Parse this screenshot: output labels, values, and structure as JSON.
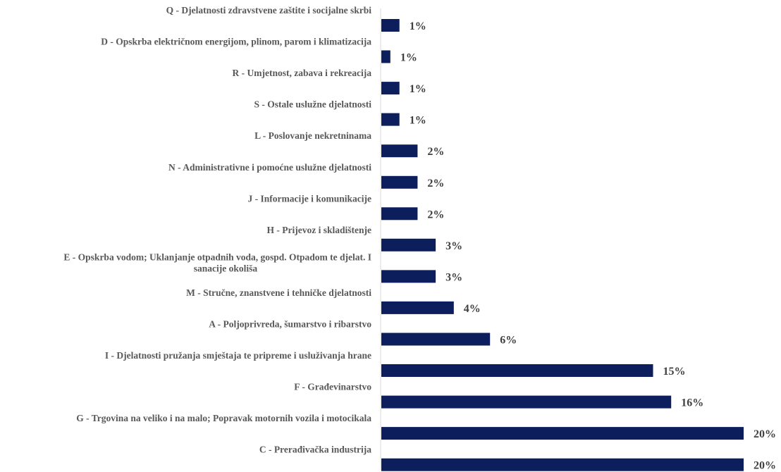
{
  "chart_data": {
    "type": "bar",
    "orientation": "horizontal",
    "title": "",
    "xlabel": "",
    "ylabel": "",
    "xlim": [
      0,
      20
    ],
    "grid": false,
    "legend": "none",
    "bar_color": "#0c1f5c",
    "axis_color": "#d9d9d9",
    "categories": [
      "Q - Djelatnosti zdravstvene zaštite i socijalne skrbi",
      "D - Opskrba električnom energijom, plinom, parom i klimatizacija",
      "R - Umjetnost, zabava i rekreacija",
      "S - Ostale uslužne djelatnosti",
      "L - Poslovanje nekretninama",
      "N - Administrativne i pomoćne uslužne djelatnosti",
      "J - Informacije i komunikacije",
      "H - Prijevoz i skladištenje",
      "E - Opskrba vodom; Uklanjanje otpadnih voda, gospd. Otpadom te djelat. I sanacije okoliša",
      "M - Stručne, znanstvene i tehničke djelatnosti",
      "A - Poljoprivreda, šumarstvo i ribarstvo",
      "I - Djelatnosti pružanja smještaja te pripreme i usluživanja hrane",
      "F - Građevinarstvo",
      "G - Trgovina na veliko i na malo; Popravak motornih vozila i motocikala",
      "C - Prerađivačka industrija"
    ],
    "values": [
      1.0,
      0.5,
      1.0,
      1.0,
      2.0,
      2.0,
      2.0,
      3.0,
      3.0,
      4.0,
      6.0,
      15.0,
      16.0,
      20.0,
      20.0
    ],
    "data_labels": [
      "1%",
      "1%",
      "1%",
      "1%",
      "2%",
      "2%",
      "2%",
      "3%",
      "3%",
      "4%",
      "6%",
      "15%",
      "16%",
      "20%",
      "20%"
    ],
    "label_lines": [
      [
        "Q - Djelatnosti zdravstvene zaštite i socijalne skrbi"
      ],
      [
        "D - Opskrba električnom energijom, plinom, parom i klimatizacija"
      ],
      [
        "R - Umjetnost, zabava i rekreacija"
      ],
      [
        "S - Ostale uslužne djelatnosti"
      ],
      [
        "L - Poslovanje nekretninama"
      ],
      [
        "N - Administrativne i pomoćne uslužne djelatnosti"
      ],
      [
        "J - Informacije i komunikacije"
      ],
      [
        "H - Prijevoz i skladištenje"
      ],
      [
        "E - Opskrba vodom; Uklanjanje otpadnih voda, gospd. Otpadom te djelat. I",
        "sanacije okoliša"
      ],
      [
        "M - Stručne, znanstvene i tehničke djelatnosti"
      ],
      [
        "A - Poljoprivreda, šumarstvo i ribarstvo"
      ],
      [
        "I - Djelatnosti pružanja smještaja te pripreme i usluživanja hrane"
      ],
      [
        "F - Građevinarstvo"
      ],
      [
        "G - Trgovina na veliko i na malo; Popravak motornih vozila i motocikala"
      ],
      [
        "C - Prerađivačka industrija"
      ]
    ]
  }
}
